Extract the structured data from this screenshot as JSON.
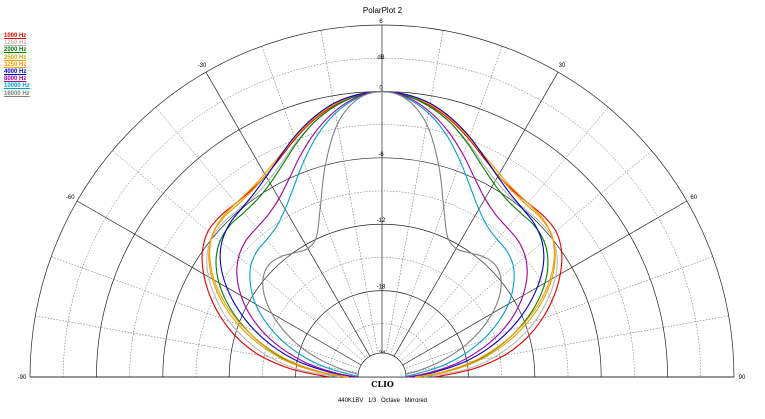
{
  "chart_data": {
    "type": "polar-line",
    "title": "PolarPlot 2",
    "footer": "440K1BV   1/3 Octave   Mirrored",
    "logo": "CLIO",
    "radial_unit": "dB",
    "rlim": [
      -24,
      6
    ],
    "radial_ticks": [
      6,
      0,
      -6,
      -12,
      -18,
      -24
    ],
    "radial_tick_labels": [
      "6",
      "0",
      "-6",
      "-12",
      "-18",
      "-24"
    ],
    "angle_range": [
      -90,
      90
    ],
    "angle_labels": [
      {
        "angle": -90,
        "text": "-90"
      },
      {
        "angle": -60,
        "text": "-60"
      },
      {
        "angle": -30,
        "text": "-30"
      },
      {
        "angle": 30,
        "text": "30"
      },
      {
        "angle": 60,
        "text": "60"
      },
      {
        "angle": 90,
        "text": "90"
      }
    ],
    "angles": [
      0,
      5,
      10,
      15,
      20,
      25,
      30,
      35,
      40,
      45,
      50,
      55,
      60,
      65,
      70,
      75,
      80,
      85,
      90
    ],
    "mirrored": true,
    "legend_position": "top-left",
    "series": [
      {
        "name": "1000 Hz",
        "color": "#e00000",
        "values": [
          0,
          -0.3,
          -0.9,
          -1.8,
          -2.9,
          -4.0,
          -4.8,
          -5.2,
          -5.3,
          -5.2,
          -5.3,
          -6.0,
          -7.2,
          -8.7,
          -10.4,
          -12.3,
          -14.6,
          -17.6,
          -21
        ]
      },
      {
        "name": "1250 Hz",
        "color": "#b8b8b8",
        "values": [
          0,
          -0.3,
          -1.0,
          -2.0,
          -3.2,
          -4.4,
          -5.3,
          -5.8,
          -5.9,
          -5.8,
          -5.9,
          -6.5,
          -7.7,
          -9.3,
          -11.1,
          -13.2,
          -15.5,
          -18.3,
          -22
        ]
      },
      {
        "name": "2000 Hz",
        "color": "#008000",
        "values": [
          0,
          -0.3,
          -1.0,
          -2.0,
          -3.3,
          -4.6,
          -5.6,
          -6.2,
          -6.4,
          -6.4,
          -6.7,
          -7.5,
          -8.8,
          -10.5,
          -12.5,
          -14.7,
          -17.1,
          -19.9,
          -22.5
        ]
      },
      {
        "name": "2500 Hz",
        "color": "#d9a400",
        "values": [
          0,
          -0.2,
          -0.8,
          -1.7,
          -2.8,
          -3.9,
          -4.8,
          -5.3,
          -5.5,
          -5.5,
          -5.8,
          -6.7,
          -8.1,
          -9.9,
          -12.0,
          -14.3,
          -16.8,
          -19.7,
          -22.5
        ]
      },
      {
        "name": "3250 Hz",
        "color": "#ff9900",
        "values": [
          0,
          -0.2,
          -0.8,
          -1.7,
          -2.8,
          -3.8,
          -4.6,
          -5.1,
          -5.3,
          -5.4,
          -5.8,
          -6.8,
          -8.3,
          -10.2,
          -12.4,
          -14.8,
          -17.3,
          -20.2,
          -22.8
        ]
      },
      {
        "name": "4000 Hz",
        "color": "#0000cc",
        "values": [
          0,
          -0.2,
          -0.7,
          -1.6,
          -2.7,
          -3.9,
          -4.9,
          -5.6,
          -6.0,
          -6.3,
          -6.9,
          -8.0,
          -9.6,
          -11.5,
          -13.6,
          -15.9,
          -18.4,
          -21.2,
          -23.5
        ]
      },
      {
        "name": "8000 Hz",
        "color": "#a000a0",
        "values": [
          0,
          -0.4,
          -1.4,
          -2.8,
          -4.4,
          -6.0,
          -7.2,
          -7.9,
          -8.2,
          -8.4,
          -8.9,
          -9.8,
          -11.1,
          -12.7,
          -14.6,
          -16.8,
          -19.1,
          -21.6,
          -23.5
        ]
      },
      {
        "name": "10000 Hz",
        "color": "#00a0d0",
        "values": [
          0,
          -0.5,
          -1.6,
          -3.2,
          -5.1,
          -6.9,
          -8.3,
          -9.2,
          -9.6,
          -9.8,
          -10.3,
          -11.3,
          -12.6,
          -14.3,
          -16.2,
          -18.3,
          -20.5,
          -22.8,
          -24
        ]
      },
      {
        "name": "16000 Hz",
        "color": "#808080",
        "values": [
          0,
          -0.6,
          -2.6,
          -6.0,
          -9.5,
          -11.8,
          -12.4,
          -12.1,
          -11.6,
          -11.4,
          -11.8,
          -12.8,
          -14.3,
          -16.1,
          -18.1,
          -20.3,
          -22.4,
          -24,
          -24
        ]
      }
    ]
  }
}
